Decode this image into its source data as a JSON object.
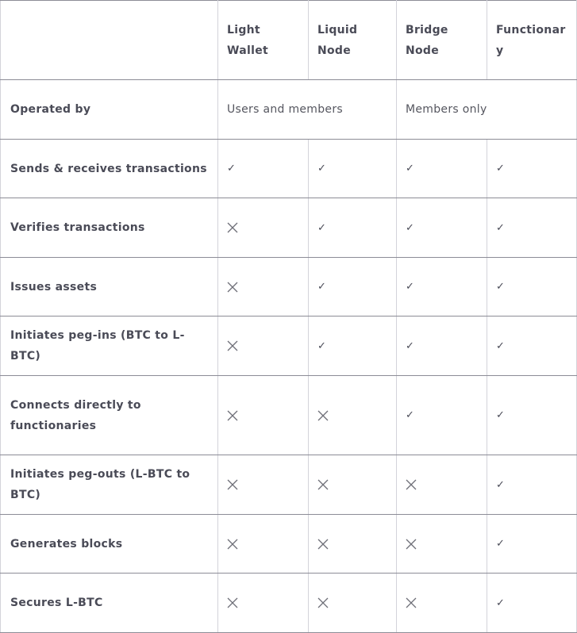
{
  "headers": [
    "",
    "Light Wallet",
    "Liquid Node",
    "Bridge Node",
    "Functionary"
  ],
  "operated_by": {
    "label": "Operated by",
    "users_and_members": "Users and members",
    "members_only": "Members only"
  },
  "rows": [
    {
      "label": "Sends & receives transactions",
      "values": [
        true,
        true,
        true,
        true
      ]
    },
    {
      "label": "Verifies transactions",
      "values": [
        false,
        true,
        true,
        true
      ]
    },
    {
      "label": "Issues assets",
      "values": [
        false,
        true,
        true,
        true
      ]
    },
    {
      "label": "Initiates peg-ins (BTC to L-BTC)",
      "values": [
        false,
        true,
        true,
        true
      ]
    },
    {
      "label": "Connects directly to functionaries",
      "values": [
        false,
        false,
        true,
        true
      ]
    },
    {
      "label": "Initiates peg-outs (L-BTC to BTC)",
      "values": [
        false,
        false,
        false,
        true
      ]
    },
    {
      "label": "Generates blocks",
      "values": [
        false,
        false,
        false,
        true
      ]
    },
    {
      "label": "Secures L-BTC",
      "values": [
        false,
        false,
        false,
        true
      ]
    }
  ],
  "icons": {
    "true": "check-icon",
    "false": "cross-icon"
  },
  "check_glyph": "✓"
}
